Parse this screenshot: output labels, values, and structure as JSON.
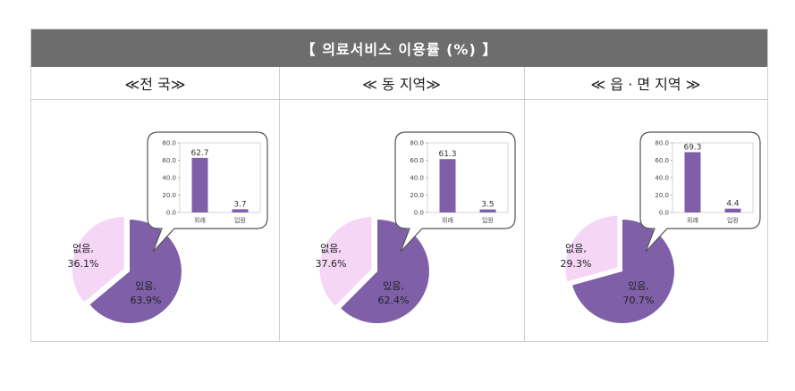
{
  "title": "【 의료서비스 이용률 (%) 】",
  "colors": {
    "used": "#7f60a8",
    "unused": "#f5d6f5",
    "bar": "#7f60a8",
    "header": "#6d6d6d"
  },
  "chart_data": [
    {
      "type": "pie",
      "heading": "≪전 국≫",
      "slices": [
        {
          "label": "있음,",
          "value": 63.9,
          "text": "63.9%"
        },
        {
          "label": "없음,",
          "value": 36.1,
          "text": "36.1%"
        }
      ],
      "inset": {
        "type": "bar",
        "categories": [
          "외래",
          "입원"
        ],
        "values": [
          62.7,
          3.7
        ],
        "value_labels": [
          "62.7",
          "3.7"
        ],
        "ticks": [
          "0.0",
          "20.0",
          "40.0",
          "60.0",
          "80.0"
        ],
        "ylim": [
          0,
          80
        ]
      }
    },
    {
      "type": "pie",
      "heading": "≪ 동 지역≫",
      "slices": [
        {
          "label": "있음,",
          "value": 62.4,
          "text": "62.4%"
        },
        {
          "label": "없음,",
          "value": 37.6,
          "text": "37.6%"
        }
      ],
      "inset": {
        "type": "bar",
        "categories": [
          "외래",
          "입원"
        ],
        "values": [
          61.3,
          3.5
        ],
        "value_labels": [
          "61.3",
          "3.5"
        ],
        "ticks": [
          "0.0",
          "20.0",
          "40.0",
          "60.0",
          "80.0"
        ],
        "ylim": [
          0,
          80
        ]
      }
    },
    {
      "type": "pie",
      "heading": "≪ 읍 · 면 지역 ≫",
      "slices": [
        {
          "label": "있음,",
          "value": 70.7,
          "text": "70.7%"
        },
        {
          "label": "없음,",
          "value": 29.3,
          "text": "29.3%"
        }
      ],
      "inset": {
        "type": "bar",
        "categories": [
          "외래",
          "입원"
        ],
        "values": [
          69.3,
          4.4
        ],
        "value_labels": [
          "69.3",
          "4.4"
        ],
        "ticks": [
          "0.0",
          "20.0",
          "40.0",
          "60.0",
          "80.0"
        ],
        "ylim": [
          0,
          80
        ]
      }
    }
  ]
}
